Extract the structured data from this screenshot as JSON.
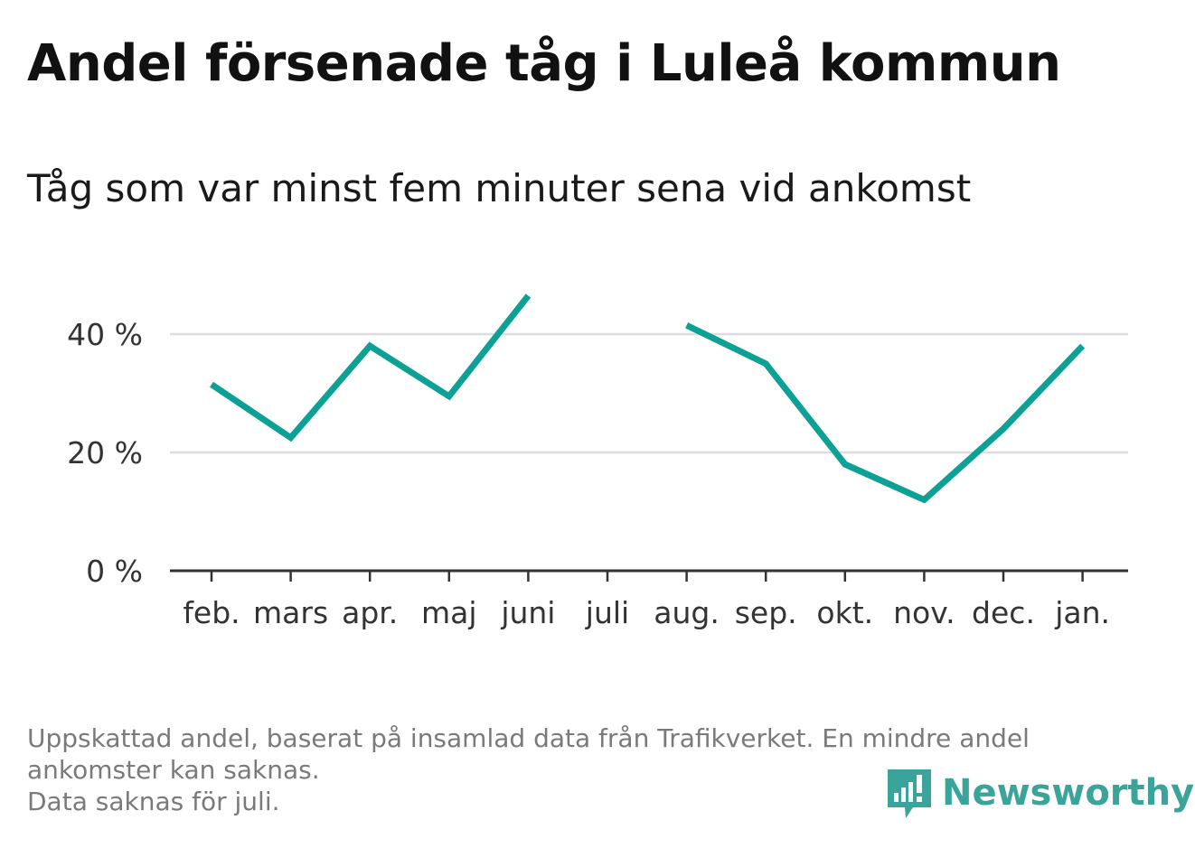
{
  "title": "Andel försenade tåg i Luleå kommun",
  "subtitle": "Tåg som var minst fem minuter sena vid ankomst",
  "footnote": {
    "line1": "Uppskattad andel, baserat på insamlad data från Trafikverket. En mindre andel",
    "line2": "ankomster kan saknas.",
    "line3": "Data saknas för juli."
  },
  "brand": {
    "name": "Newsworthy",
    "icon": "newsworthy-logo-icon",
    "color": "#3aa39a"
  },
  "chart_data": {
    "type": "line",
    "categories": [
      "feb.",
      "mars",
      "apr.",
      "maj",
      "juni",
      "juli",
      "aug.",
      "sep.",
      "okt.",
      "nov.",
      "dec.",
      "jan."
    ],
    "series": [
      {
        "values": [
          31.5,
          22.5,
          38,
          29.5,
          46.5,
          null,
          41.5,
          35,
          18,
          12,
          24,
          38
        ],
        "color": "#0da196"
      }
    ],
    "yticks": [
      {
        "value": 0,
        "label": "0 %"
      },
      {
        "value": 20,
        "label": "20 %"
      },
      {
        "value": 40,
        "label": "40 %"
      }
    ],
    "ylim": [
      0,
      50
    ],
    "grid": true,
    "xlabel": "",
    "ylabel": ""
  }
}
